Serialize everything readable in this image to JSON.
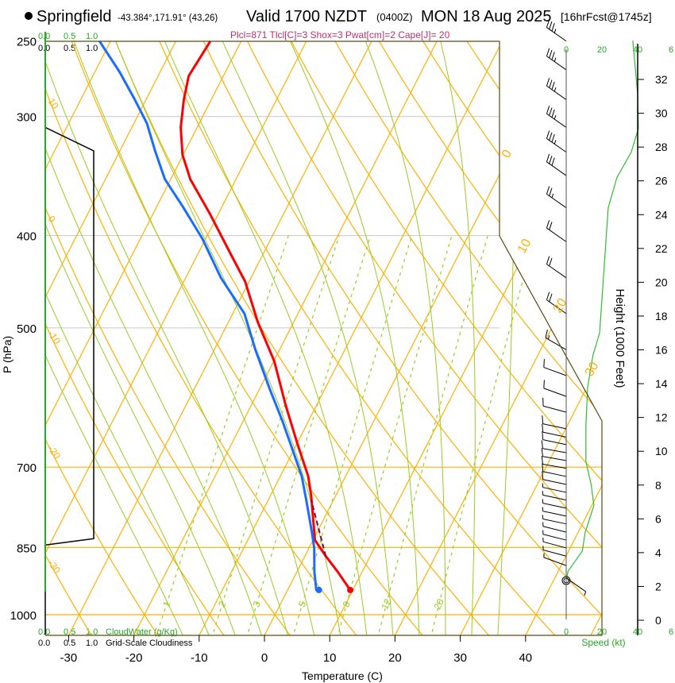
{
  "header": {
    "station": "Springfield",
    "coords": "-43.384°,171.91° (43,26)",
    "valid": "Valid 1700 NZDT",
    "utc": "(0400Z)",
    "date": "MON 18 Aug 2025",
    "forecast": "[16hrFcst@1745z]"
  },
  "indices": "Plcl=871 Tlcl[C]=3 Shox=3 Pwat[cm]=2 Cape[J]= 20",
  "cloud_scale": {
    "ticks": [
      "0.0",
      "0.5",
      "1.0"
    ],
    "cloudwater_label": "CloudWater (g/Kg)",
    "cloudiness_label": "Grid-Scale Cloudiness"
  },
  "colors": {
    "temperature": "#ff0000",
    "dewpoint": "#1a6cff",
    "parcel": "#800060",
    "isotherm": "#ffb000",
    "moist": "#99cc22",
    "label_green": "#22aa22",
    "indices": "#c0306a"
  },
  "chart_data": {
    "type": "skewT",
    "xlabel": "Temperature (C)",
    "ylabel": "P (hPa)",
    "height_label": "Height (1000 Feet)",
    "speed_label": "Speed (kt)",
    "pressure_ticks": [
      "250",
      "300",
      "400",
      "500",
      "700",
      "850",
      "1000"
    ],
    "temp_ticks": [
      "-30",
      "-20",
      "-10",
      "0",
      "10",
      "20",
      "30",
      "40"
    ],
    "height_ticks": [
      "0",
      "2",
      "4",
      "6",
      "8",
      "10",
      "12",
      "14",
      "16",
      "18",
      "20",
      "22",
      "24",
      "26",
      "28",
      "30",
      "32"
    ],
    "speed_ticks": [
      "0",
      "20",
      "40",
      "6"
    ],
    "theta_labels": [
      "10",
      "0",
      "-10",
      "-20",
      "-30"
    ],
    "isotherm_labels": [
      "0",
      "10",
      "20",
      "30"
    ],
    "mixing_ratio_labels": [
      "1",
      "2",
      "3",
      "5",
      "8",
      "12",
      "20"
    ],
    "ylim_hpa": [
      1050,
      250
    ],
    "temperature": [
      {
        "p": 250,
        "t": -54.7
      },
      {
        "p": 272,
        "t": -55.3
      },
      {
        "p": 288,
        "t": -54.2
      },
      {
        "p": 308,
        "t": -52.5
      },
      {
        "p": 329,
        "t": -50.1
      },
      {
        "p": 349,
        "t": -47.0
      },
      {
        "p": 380,
        "t": -41.2
      },
      {
        "p": 418,
        "t": -35.0
      },
      {
        "p": 447,
        "t": -30.6
      },
      {
        "p": 493,
        "t": -25.5
      },
      {
        "p": 542,
        "t": -19.9
      },
      {
        "p": 603,
        "t": -14.7
      },
      {
        "p": 663,
        "t": -9.8
      },
      {
        "p": 716,
        "t": -5.7
      },
      {
        "p": 751,
        "t": -3.7
      },
      {
        "p": 835,
        "t": 0.3
      },
      {
        "p": 868,
        "t": 3.2
      },
      {
        "p": 902,
        "t": 6.3
      },
      {
        "p": 942,
        "t": 9.6
      }
    ],
    "dewpoint": [
      {
        "p": 250,
        "t": -71.7
      },
      {
        "p": 269,
        "t": -66.3
      },
      {
        "p": 288,
        "t": -61.7
      },
      {
        "p": 305,
        "t": -58.0
      },
      {
        "p": 326,
        "t": -54.6
      },
      {
        "p": 349,
        "t": -50.9
      },
      {
        "p": 373,
        "t": -46.0
      },
      {
        "p": 403,
        "t": -40.5
      },
      {
        "p": 443,
        "t": -34.6
      },
      {
        "p": 483,
        "t": -28.2
      },
      {
        "p": 527,
        "t": -23.7
      },
      {
        "p": 580,
        "t": -18.4
      },
      {
        "p": 626,
        "t": -14.0
      },
      {
        "p": 676,
        "t": -9.8
      },
      {
        "p": 716,
        "t": -6.7
      },
      {
        "p": 759,
        "t": -4.1
      },
      {
        "p": 819,
        "t": -0.8
      },
      {
        "p": 851,
        "t": 0.8
      },
      {
        "p": 902,
        "t": 2.7
      },
      {
        "p": 942,
        "t": 4.4
      },
      {
        "p": 942,
        "t": 4.8
      }
    ],
    "parcel": [
      {
        "p": 868,
        "t": 3.2
      },
      {
        "p": 758,
        "t": -3.4
      }
    ],
    "cloudiness": [
      {
        "p": 250,
        "c": 0
      },
      {
        "p": 308,
        "c": 0
      },
      {
        "p": 326,
        "c": 1.0
      },
      {
        "p": 832,
        "c": 1.0
      },
      {
        "p": 845,
        "c": 0
      },
      {
        "p": 1050,
        "c": 0
      }
    ],
    "wind_speed_profile": [
      {
        "h": 2.4,
        "s": 0
      },
      {
        "h": 2.9,
        "s": 1
      },
      {
        "h": 4.1,
        "s": 9
      },
      {
        "h": 5.2,
        "s": 10.6
      },
      {
        "h": 6.8,
        "s": 15.5
      },
      {
        "h": 8,
        "s": 14
      },
      {
        "h": 9.4,
        "s": 11
      },
      {
        "h": 11.5,
        "s": 11
      },
      {
        "h": 13.8,
        "s": 12
      },
      {
        "h": 15.7,
        "s": 15
      },
      {
        "h": 17,
        "s": 18.7
      },
      {
        "h": 24.4,
        "s": 23.5
      },
      {
        "h": 26.2,
        "s": 28.4
      },
      {
        "h": 27.7,
        "s": 36.4
      },
      {
        "h": 29.1,
        "s": 40.4
      },
      {
        "h": 31.1,
        "s": 40
      },
      {
        "h": 34.3,
        "s": 37.3
      }
    ],
    "wind_barbs": [
      {
        "p": 250,
        "dir": 305,
        "spd": 35
      },
      {
        "p": 268,
        "dir": 305,
        "spd": 35
      },
      {
        "p": 288,
        "dir": 305,
        "spd": 35
      },
      {
        "p": 308,
        "dir": 305,
        "spd": 35
      },
      {
        "p": 327,
        "dir": 305,
        "spd": 35
      },
      {
        "p": 346,
        "dir": 305,
        "spd": 30
      },
      {
        "p": 374,
        "dir": 305,
        "spd": 25
      },
      {
        "p": 406,
        "dir": 305,
        "spd": 20
      },
      {
        "p": 443,
        "dir": 305,
        "spd": 20
      },
      {
        "p": 483,
        "dir": 305,
        "spd": 20
      },
      {
        "p": 527,
        "dir": 300,
        "spd": 15
      },
      {
        "p": 561,
        "dir": 290,
        "spd": 10
      },
      {
        "p": 590,
        "dir": 290,
        "spd": 10
      },
      {
        "p": 613,
        "dir": 285,
        "spd": 10
      },
      {
        "p": 638,
        "dir": 282,
        "spd": 10
      },
      {
        "p": 651,
        "dir": 282,
        "spd": 10
      },
      {
        "p": 663,
        "dir": 282,
        "spd": 10
      },
      {
        "p": 676,
        "dir": 280,
        "spd": 10
      },
      {
        "p": 689,
        "dir": 280,
        "spd": 10
      },
      {
        "p": 702,
        "dir": 280,
        "spd": 10
      },
      {
        "p": 716,
        "dir": 282,
        "spd": 10
      },
      {
        "p": 730,
        "dir": 282,
        "spd": 10
      },
      {
        "p": 744,
        "dir": 282,
        "spd": 5
      },
      {
        "p": 758,
        "dir": 282,
        "spd": 5
      },
      {
        "p": 773,
        "dir": 282,
        "spd": 5
      },
      {
        "p": 788,
        "dir": 282,
        "spd": 5
      },
      {
        "p": 803,
        "dir": 282,
        "spd": 5
      },
      {
        "p": 819,
        "dir": 284,
        "spd": 5
      },
      {
        "p": 835,
        "dir": 284,
        "spd": 5
      },
      {
        "p": 851,
        "dir": 285,
        "spd": 5
      },
      {
        "p": 868,
        "dir": 285,
        "spd": 5
      },
      {
        "p": 888,
        "dir": 290,
        "spd": 5
      },
      {
        "p": 915,
        "dir": 125,
        "spd": 5
      }
    ]
  }
}
